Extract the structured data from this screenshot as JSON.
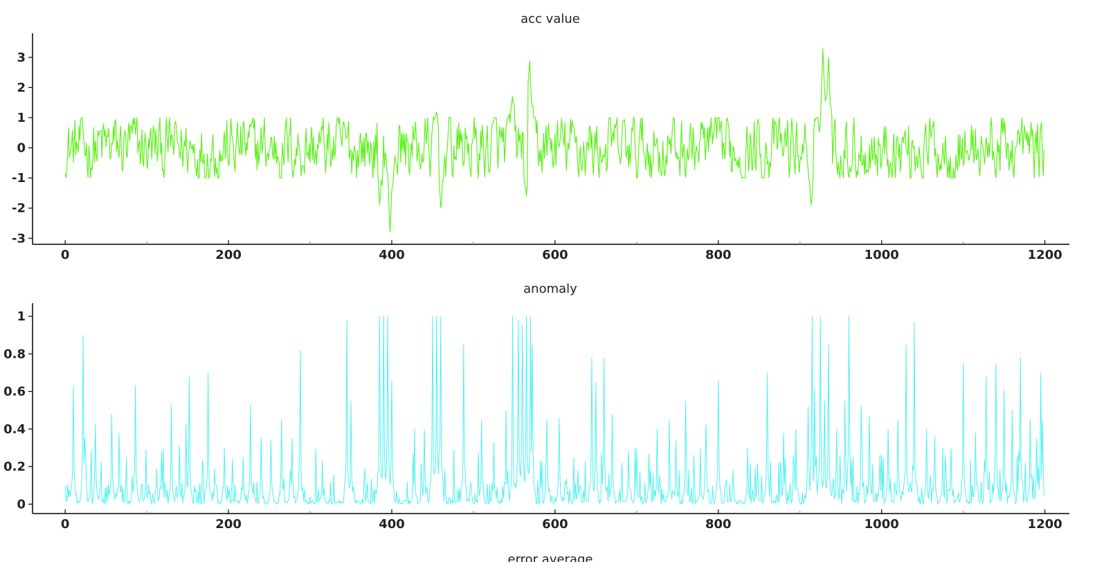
{
  "chart_data": [
    {
      "type": "line",
      "title": "acc value",
      "xlabel": "",
      "ylabel": "",
      "xlim": [
        -40,
        1230
      ],
      "ylim": [
        -3.2,
        3.8
      ],
      "xticks": [
        0,
        200,
        400,
        600,
        800,
        1000,
        1200
      ],
      "xtick_labels": [
        "0",
        "200",
        "400",
        "600",
        "800",
        "1000",
        "1200"
      ],
      "yticks": [
        3,
        2,
        1,
        0,
        -1,
        -2,
        -3
      ],
      "ytick_labels": [
        "3",
        "2",
        "1",
        "0",
        "-1",
        "-2",
        "-3"
      ],
      "grid": false,
      "color": "#5df01a",
      "points_count": 1200,
      "baseline_range": [
        -1.0,
        1.0
      ],
      "events": [
        {
          "x": 385,
          "y": -1.9
        },
        {
          "x": 398,
          "y": -2.8
        },
        {
          "x": 455,
          "y": 1.2
        },
        {
          "x": 460,
          "y": -2.0
        },
        {
          "x": 548,
          "y": 1.7
        },
        {
          "x": 565,
          "y": -1.6
        },
        {
          "x": 569,
          "y": 2.9
        },
        {
          "x": 914,
          "y": -1.9
        },
        {
          "x": 928,
          "y": 3.3
        },
        {
          "x": 935,
          "y": 3.0
        }
      ]
    },
    {
      "type": "line",
      "title": "anomaly",
      "xlabel": "",
      "ylabel": "",
      "xlim": [
        -40,
        1230
      ],
      "ylim": [
        -0.05,
        1.07
      ],
      "xticks": [
        0,
        200,
        400,
        600,
        800,
        1000,
        1200
      ],
      "xtick_labels": [
        "0",
        "200",
        "400",
        "600",
        "800",
        "1000",
        "1200"
      ],
      "yticks": [
        1,
        0.8,
        0.6,
        0.4,
        0.2,
        0
      ],
      "ytick_labels": [
        "1",
        "0.8",
        "0.6",
        "0.4",
        "0.2",
        "0"
      ],
      "grid": false,
      "color": "#4ef0f0",
      "points_count": 1200,
      "peaks": [
        {
          "x": 10,
          "y": 0.63
        },
        {
          "x": 22,
          "y": 0.9
        },
        {
          "x": 24,
          "y": 0.35
        },
        {
          "x": 37,
          "y": 0.43
        },
        {
          "x": 57,
          "y": 0.48
        },
        {
          "x": 66,
          "y": 0.38
        },
        {
          "x": 86,
          "y": 0.63
        },
        {
          "x": 99,
          "y": 0.21
        },
        {
          "x": 118,
          "y": 0.28
        },
        {
          "x": 130,
          "y": 0.53
        },
        {
          "x": 140,
          "y": 0.31
        },
        {
          "x": 148,
          "y": 0.43
        },
        {
          "x": 152,
          "y": 0.68
        },
        {
          "x": 175,
          "y": 0.7
        },
        {
          "x": 183,
          "y": 0.19
        },
        {
          "x": 195,
          "y": 0.3
        },
        {
          "x": 218,
          "y": 0.25
        },
        {
          "x": 227,
          "y": 0.53
        },
        {
          "x": 240,
          "y": 0.35
        },
        {
          "x": 252,
          "y": 0.34
        },
        {
          "x": 265,
          "y": 0.45
        },
        {
          "x": 278,
          "y": 0.35
        },
        {
          "x": 288,
          "y": 0.82
        },
        {
          "x": 315,
          "y": 0.23
        },
        {
          "x": 345,
          "y": 0.98
        },
        {
          "x": 350,
          "y": 0.55
        },
        {
          "x": 385,
          "y": 1.0
        },
        {
          "x": 390,
          "y": 1.0
        },
        {
          "x": 395,
          "y": 1.0
        },
        {
          "x": 400,
          "y": 0.66
        },
        {
          "x": 428,
          "y": 0.4
        },
        {
          "x": 440,
          "y": 0.4
        },
        {
          "x": 450,
          "y": 1.0
        },
        {
          "x": 455,
          "y": 1.0
        },
        {
          "x": 460,
          "y": 1.0
        },
        {
          "x": 488,
          "y": 0.85
        },
        {
          "x": 510,
          "y": 0.45
        },
        {
          "x": 525,
          "y": 0.33
        },
        {
          "x": 540,
          "y": 0.5
        },
        {
          "x": 548,
          "y": 1.0
        },
        {
          "x": 555,
          "y": 0.98
        },
        {
          "x": 560,
          "y": 0.95
        },
        {
          "x": 565,
          "y": 1.0
        },
        {
          "x": 570,
          "y": 1.0
        },
        {
          "x": 572,
          "y": 0.85
        },
        {
          "x": 590,
          "y": 0.45
        },
        {
          "x": 605,
          "y": 0.46
        },
        {
          "x": 628,
          "y": 0.18
        },
        {
          "x": 645,
          "y": 0.78
        },
        {
          "x": 650,
          "y": 0.65
        },
        {
          "x": 660,
          "y": 0.78
        },
        {
          "x": 670,
          "y": 0.48
        },
        {
          "x": 690,
          "y": 0.26
        },
        {
          "x": 700,
          "y": 0.3
        },
        {
          "x": 715,
          "y": 0.27
        },
        {
          "x": 725,
          "y": 0.4
        },
        {
          "x": 740,
          "y": 0.45
        },
        {
          "x": 748,
          "y": 0.34
        },
        {
          "x": 760,
          "y": 0.55
        },
        {
          "x": 778,
          "y": 0.24
        },
        {
          "x": 785,
          "y": 0.43
        },
        {
          "x": 800,
          "y": 0.66
        },
        {
          "x": 818,
          "y": 0.18
        },
        {
          "x": 836,
          "y": 0.3
        },
        {
          "x": 848,
          "y": 0.22
        },
        {
          "x": 860,
          "y": 0.7
        },
        {
          "x": 880,
          "y": 0.38
        },
        {
          "x": 895,
          "y": 0.4
        },
        {
          "x": 910,
          "y": 0.52
        },
        {
          "x": 915,
          "y": 1.0
        },
        {
          "x": 918,
          "y": 0.62
        },
        {
          "x": 925,
          "y": 1.0
        },
        {
          "x": 930,
          "y": 0.55
        },
        {
          "x": 935,
          "y": 0.85
        },
        {
          "x": 945,
          "y": 0.4
        },
        {
          "x": 955,
          "y": 0.55
        },
        {
          "x": 960,
          "y": 1.0
        },
        {
          "x": 975,
          "y": 0.52
        },
        {
          "x": 985,
          "y": 0.47
        },
        {
          "x": 998,
          "y": 0.26
        },
        {
          "x": 1008,
          "y": 0.4
        },
        {
          "x": 1020,
          "y": 0.45
        },
        {
          "x": 1030,
          "y": 0.85
        },
        {
          "x": 1040,
          "y": 0.97
        },
        {
          "x": 1055,
          "y": 0.4
        },
        {
          "x": 1065,
          "y": 0.36
        },
        {
          "x": 1075,
          "y": 0.3
        },
        {
          "x": 1085,
          "y": 0.3
        },
        {
          "x": 1100,
          "y": 0.75
        },
        {
          "x": 1115,
          "y": 0.38
        },
        {
          "x": 1128,
          "y": 0.68
        },
        {
          "x": 1140,
          "y": 0.75
        },
        {
          "x": 1150,
          "y": 0.61
        },
        {
          "x": 1160,
          "y": 0.5
        },
        {
          "x": 1170,
          "y": 0.78
        },
        {
          "x": 1182,
          "y": 0.45
        },
        {
          "x": 1190,
          "y": 0.35
        },
        {
          "x": 1195,
          "y": 0.7
        },
        {
          "x": 1197,
          "y": 0.45
        }
      ]
    },
    {
      "type": "line",
      "title": "error average",
      "xlabel": "",
      "ylabel": ""
    }
  ]
}
